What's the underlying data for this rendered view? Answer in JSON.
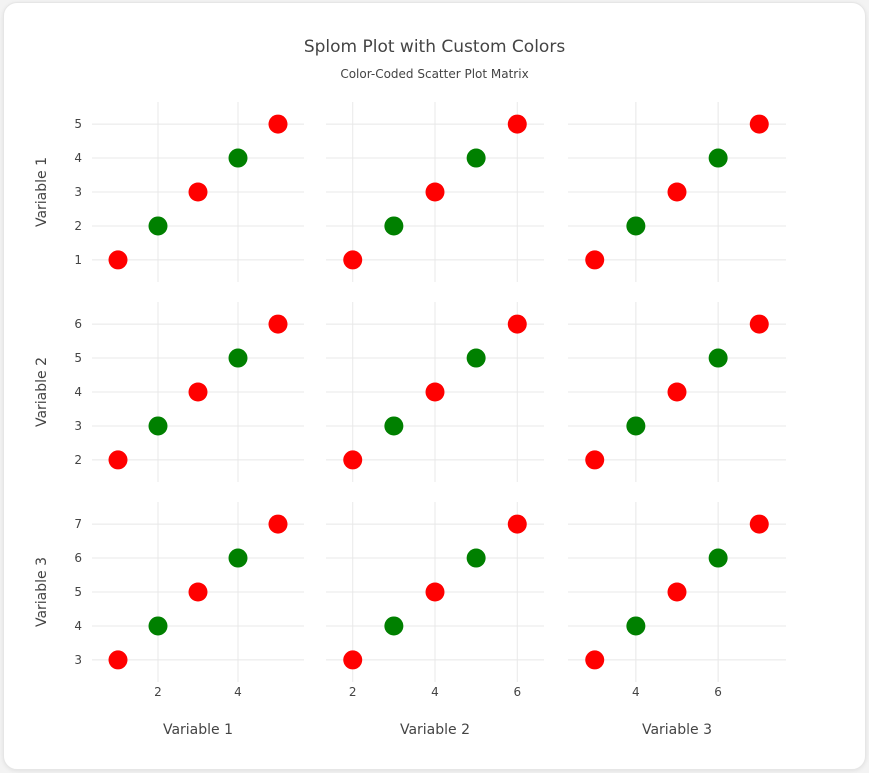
{
  "chart_data": {
    "type": "splom",
    "title": "Splom Plot with Custom Colors",
    "subtitle": "Color-Coded Scatter Plot Matrix",
    "dimensions": [
      {
        "label": "Variable 1",
        "values": [
          1,
          2,
          3,
          4,
          5
        ],
        "ticks": [
          1,
          2,
          3,
          4,
          5
        ],
        "range": [
          0.35,
          5.65
        ]
      },
      {
        "label": "Variable 2",
        "values": [
          2,
          3,
          4,
          5,
          6
        ],
        "ticks": [
          2,
          3,
          4,
          5,
          6
        ],
        "range": [
          1.35,
          6.65
        ]
      },
      {
        "label": "Variable 3",
        "values": [
          3,
          4,
          5,
          6,
          7
        ],
        "ticks": [
          3,
          4,
          5,
          6,
          7
        ],
        "range": [
          2.35,
          7.65
        ]
      }
    ],
    "x_ticks": [
      [
        2,
        4
      ],
      [
        2,
        4,
        6
      ],
      [
        4,
        6
      ]
    ],
    "point_colors": [
      "#ff0000",
      "#008000",
      "#ff0000",
      "#008000",
      "#ff0000"
    ],
    "grid": true,
    "legend": "none"
  }
}
